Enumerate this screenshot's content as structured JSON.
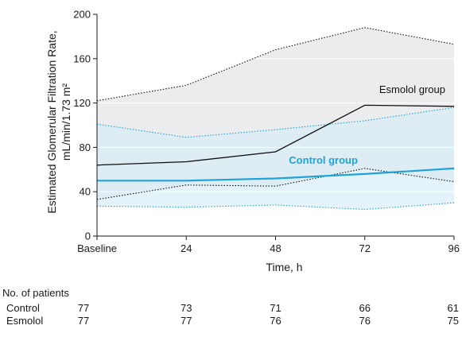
{
  "chart_data": {
    "type": "line",
    "title": "",
    "xlabel": "Time, h",
    "ylabel_line1": "Estimated Glomerular Filtration Rate,",
    "ylabel_line2": "mL/min/1.73 m²",
    "ylim": [
      0,
      200
    ],
    "yticks": [
      0,
      40,
      80,
      120,
      160,
      200
    ],
    "x_ticks": [
      "Baseline",
      "24",
      "48",
      "72",
      "96"
    ],
    "x": [
      0,
      24,
      48,
      72,
      96
    ],
    "grid": "horizontal",
    "series": [
      {
        "name": "Esmolol group",
        "color": "#111111",
        "median": [
          64,
          67,
          76,
          118,
          117
        ],
        "upper": [
          122,
          136,
          168,
          188,
          173
        ],
        "lower": [
          33,
          46,
          45,
          61,
          49
        ],
        "band_color": "#e4e6e8"
      },
      {
        "name": "Control group",
        "color": "#1ea3da",
        "median": [
          50,
          50,
          52,
          56,
          61
        ],
        "upper": [
          101,
          89,
          96,
          104,
          116
        ],
        "lower": [
          27,
          26,
          28,
          24,
          30
        ],
        "band_color": "#d8ecf7"
      }
    ]
  },
  "patients": {
    "title": "No. of patients",
    "rows": [
      {
        "label": "Control",
        "values": [
          "77",
          "73",
          "71",
          "66",
          "61"
        ]
      },
      {
        "label": "Esmolol",
        "values": [
          "77",
          "77",
          "76",
          "76",
          "75"
        ]
      }
    ]
  }
}
